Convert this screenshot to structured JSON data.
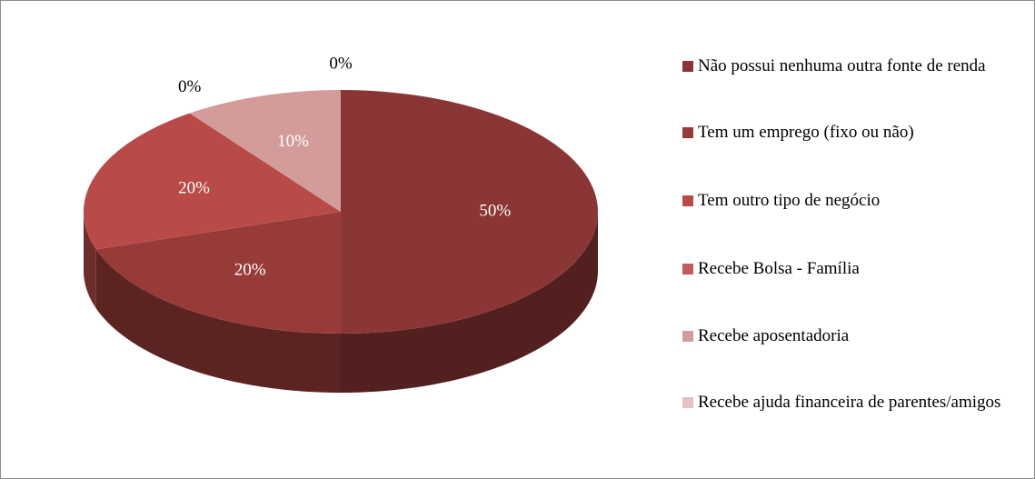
{
  "chart_data": {
    "type": "pie",
    "categories": [
      "Não possui nenhuma outra fonte de renda",
      "Tem um emprego (fixo ou não)",
      "Tem outro tipo de negócio",
      "Recebe Bolsa - Família",
      "Recebe aposentadoria",
      "Recebe ajuda financeira de parentes/amigos"
    ],
    "values": [
      50,
      20,
      20,
      0,
      10,
      0
    ],
    "value_labels": [
      "50%",
      "20%",
      "20%",
      "0%",
      "10%",
      "0%"
    ],
    "colors": [
      "#8b3636",
      "#973b39",
      "#b84b48",
      "#c45a57",
      "#d39c9a",
      "#e6c1c0"
    ],
    "legend": "right"
  }
}
